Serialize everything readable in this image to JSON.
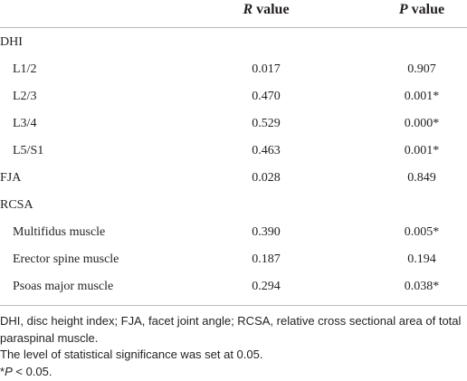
{
  "table": {
    "header": [
      {
        "symbol": "R",
        "label": "value"
      },
      {
        "symbol": "P",
        "label": "value"
      }
    ],
    "sections": [
      {
        "label": "DHI",
        "rows": [
          {
            "label": "L1/2",
            "r": "0.017",
            "p": "0.907"
          },
          {
            "label": "L2/3",
            "r": "0.470",
            "p": "0.001*"
          },
          {
            "label": "L3/4",
            "r": "0.529",
            "p": "0.000*"
          },
          {
            "label": "L5/S1",
            "r": "0.463",
            "p": "0.001*"
          }
        ]
      },
      {
        "label": "FJA",
        "r": "0.028",
        "p": "0.849"
      },
      {
        "label": "RCSA",
        "rows": [
          {
            "label": "Multifidus muscle",
            "r": "0.390",
            "p": "0.005*"
          },
          {
            "label": "Erector spine muscle",
            "r": "0.187",
            "p": "0.194"
          },
          {
            "label": "Psoas major muscle",
            "r": "0.294",
            "p": "0.038*"
          }
        ]
      }
    ]
  },
  "footnotes": [
    "DHI, disc height index; FJA, facet joint angle; RCSA, relative cross sectional area of total paraspinal muscle.",
    "The level of statistical significance was set at 0.05.",
    {
      "prefix": "*",
      "symbol": "P",
      "text": "< 0.05."
    }
  ]
}
